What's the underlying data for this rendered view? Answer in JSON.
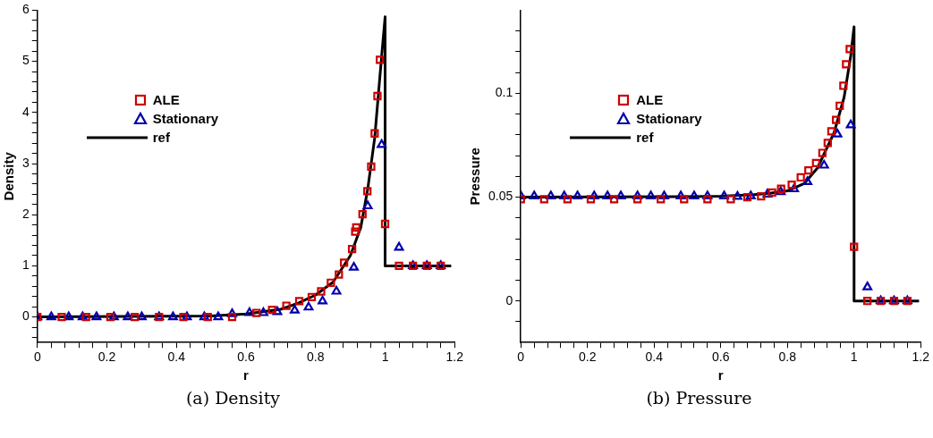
{
  "chart_data": [
    {
      "type": "scatter",
      "title": "(a) Density",
      "xlabel": "r",
      "ylabel": "Density",
      "legend": "top left",
      "xlim": [
        0,
        1.2
      ],
      "ylim": [
        -0.5,
        6
      ],
      "xticks": [
        0,
        {
          "value": 0.04,
          "label": null
        },
        {
          "value": 0.08,
          "label": null
        },
        {
          "value": 0.12,
          "label": null
        },
        {
          "value": 0.16,
          "label": null
        },
        0.2,
        {
          "value": 0.24,
          "label": null
        },
        {
          "value": 0.28,
          "label": null
        },
        {
          "value": 0.32,
          "label": null
        },
        {
          "value": 0.36,
          "label": null
        },
        0.4,
        {
          "value": 0.44,
          "label": null
        },
        {
          "value": 0.48,
          "label": null
        },
        {
          "value": 0.52,
          "label": null
        },
        {
          "value": 0.56,
          "label": null
        },
        0.6,
        {
          "value": 0.64,
          "label": null
        },
        {
          "value": 0.68,
          "label": null
        },
        {
          "value": 0.72,
          "label": null
        },
        {
          "value": 0.76,
          "label": null
        },
        0.8,
        {
          "value": 0.84,
          "label": null
        },
        {
          "value": 0.88,
          "label": null
        },
        {
          "value": 0.92,
          "label": null
        },
        {
          "value": 0.96,
          "label": null
        },
        1,
        {
          "value": 1.04,
          "label": null
        },
        {
          "value": 1.08,
          "label": null
        },
        {
          "value": 1.12,
          "label": null
        },
        {
          "value": 1.16,
          "label": null
        },
        1.2
      ],
      "yticks": [
        {
          "value": -0.4,
          "label": null
        },
        {
          "value": -0.2,
          "label": null
        },
        0,
        {
          "value": 0.2,
          "label": null
        },
        {
          "value": 0.4,
          "label": null
        },
        {
          "value": 0.6,
          "label": null
        },
        {
          "value": 0.8,
          "label": null
        },
        1,
        {
          "value": 1.2,
          "label": null
        },
        {
          "value": 1.4,
          "label": null
        },
        {
          "value": 1.6,
          "label": null
        },
        {
          "value": 1.8,
          "label": null
        },
        2,
        {
          "value": 2.2,
          "label": null
        },
        {
          "value": 2.4,
          "label": null
        },
        {
          "value": 2.6,
          "label": null
        },
        {
          "value": 2.8,
          "label": null
        },
        3,
        {
          "value": 3.2,
          "label": null
        },
        {
          "value": 3.4,
          "label": null
        },
        {
          "value": 3.6,
          "label": null
        },
        {
          "value": 3.8,
          "label": null
        },
        4,
        {
          "value": 4.2,
          "label": null
        },
        {
          "value": 4.4,
          "label": null
        },
        {
          "value": 4.6,
          "label": null
        },
        {
          "value": 4.8,
          "label": null
        },
        5,
        {
          "value": 5.2,
          "label": null
        },
        {
          "value": 5.4,
          "label": null
        },
        {
          "value": 5.6,
          "label": null
        },
        {
          "value": 5.8,
          "label": null
        },
        6
      ],
      "series": [
        {
          "name": "ALE",
          "type": "scatter",
          "marker": "square",
          "color": "#cc0000",
          "x": [
            0,
            0.07,
            0.14,
            0.21,
            0.28,
            0.35,
            0.42,
            0.49,
            0.56,
            0.63,
            0.675,
            0.716,
            0.753,
            0.789,
            0.816,
            0.844,
            0.867,
            0.882,
            0.905,
            0.914,
            0.917,
            0.935,
            0.949,
            0.96,
            0.97,
            0.978,
            0.985,
            1.0,
            1.04,
            1.08,
            1.12,
            1.16
          ],
          "values": [
            0,
            0,
            0,
            0,
            0,
            0,
            0,
            0,
            0,
            0.08,
            0.14,
            0.22,
            0.31,
            0.39,
            0.5,
            0.67,
            0.83,
            1.06,
            1.33,
            1.67,
            1.75,
            2.01,
            2.46,
            2.94,
            3.59,
            4.32,
            5.03,
            1.82,
            1,
            1,
            1,
            1
          ]
        },
        {
          "name": "Stationary",
          "type": "scatter",
          "marker": "triangle",
          "color": "#0000aa",
          "x": [
            0,
            0.04,
            0.09,
            0.13,
            0.17,
            0.22,
            0.26,
            0.3,
            0.35,
            0.39,
            0.43,
            0.48,
            0.52,
            0.56,
            0.61,
            0.65,
            0.69,
            0.74,
            0.78,
            0.82,
            0.86,
            0.91,
            0.95,
            0.99,
            1.04,
            1.08,
            1.12,
            1.16
          ],
          "values": [
            0,
            0,
            0,
            0,
            0,
            0,
            0,
            0,
            0,
            0,
            0,
            0,
            0,
            0.06,
            0.08,
            0.08,
            0.1,
            0.13,
            0.19,
            0.31,
            0.5,
            0.97,
            2.17,
            3.37,
            1.36,
            1,
            1,
            1
          ]
        },
        {
          "name": "ref",
          "type": "line",
          "marker": "none",
          "line_style": "solid",
          "color": "#000000",
          "x": [
            0,
            0.5,
            0.6,
            0.7,
            0.75,
            0.8,
            0.85,
            0.9,
            0.93,
            0.95,
            0.97,
            0.99,
            1,
            1,
            1.19
          ],
          "values": [
            0,
            0.02,
            0.06,
            0.15,
            0.27,
            0.43,
            0.68,
            1.2,
            1.75,
            2.5,
            3.5,
            5.1,
            5.87,
            1,
            1
          ]
        }
      ]
    },
    {
      "type": "scatter",
      "title": "(b) Pressure",
      "xlabel": "r",
      "ylabel": "Pressure",
      "legend": "top left",
      "xlim": [
        0,
        1.2
      ],
      "ylim": [
        -0.02,
        0.14
      ],
      "xticks": [
        0,
        {
          "value": 0.04,
          "label": null
        },
        {
          "value": 0.08,
          "label": null
        },
        {
          "value": 0.12,
          "label": null
        },
        {
          "value": 0.16,
          "label": null
        },
        0.2,
        {
          "value": 0.24,
          "label": null
        },
        {
          "value": 0.28,
          "label": null
        },
        {
          "value": 0.32,
          "label": null
        },
        {
          "value": 0.36,
          "label": null
        },
        0.4,
        {
          "value": 0.44,
          "label": null
        },
        {
          "value": 0.48,
          "label": null
        },
        {
          "value": 0.52,
          "label": null
        },
        {
          "value": 0.56,
          "label": null
        },
        0.6,
        {
          "value": 0.64,
          "label": null
        },
        {
          "value": 0.68,
          "label": null
        },
        {
          "value": 0.72,
          "label": null
        },
        {
          "value": 0.76,
          "label": null
        },
        0.8,
        {
          "value": 0.84,
          "label": null
        },
        {
          "value": 0.88,
          "label": null
        },
        {
          "value": 0.92,
          "label": null
        },
        {
          "value": 0.96,
          "label": null
        },
        1,
        {
          "value": 1.04,
          "label": null
        },
        {
          "value": 1.08,
          "label": null
        },
        {
          "value": 1.12,
          "label": null
        },
        {
          "value": 1.16,
          "label": null
        },
        1.2
      ],
      "yticks": [
        {
          "value": -0.01,
          "label": null
        },
        0,
        {
          "value": 0.01,
          "label": null
        },
        {
          "value": 0.02,
          "label": null
        },
        {
          "value": 0.03,
          "label": null
        },
        {
          "value": 0.04,
          "label": null
        },
        0.05,
        {
          "value": 0.06,
          "label": null
        },
        {
          "value": 0.07,
          "label": null
        },
        {
          "value": 0.08,
          "label": null
        },
        {
          "value": 0.09,
          "label": null
        },
        0.1,
        {
          "value": 0.11,
          "label": null
        },
        {
          "value": 0.12,
          "label": null
        },
        {
          "value": 0.13,
          "label": null
        }
      ],
      "series": [
        {
          "name": "ALE",
          "type": "scatter",
          "marker": "square",
          "color": "#cc0000",
          "x": [
            0,
            0.07,
            0.14,
            0.21,
            0.28,
            0.35,
            0.42,
            0.49,
            0.56,
            0.63,
            0.68,
            0.721,
            0.754,
            0.781,
            0.813,
            0.84,
            0.863,
            0.886,
            0.905,
            0.921,
            0.932,
            0.946,
            0.957,
            0.968,
            0.976,
            0.987,
            1.0,
            1.04,
            1.08,
            1.12,
            1.16
          ],
          "values": [
            0.049,
            0.049,
            0.049,
            0.049,
            0.049,
            0.049,
            0.049,
            0.049,
            0.049,
            0.049,
            0.05,
            0.0504,
            0.0522,
            0.054,
            0.056,
            0.0595,
            0.0629,
            0.0664,
            0.0713,
            0.0761,
            0.0817,
            0.0872,
            0.094,
            0.1036,
            0.114,
            0.1213,
            0.0261,
            0,
            0,
            0,
            0
          ]
        },
        {
          "name": "Stationary",
          "type": "scatter",
          "marker": "triangle",
          "color": "#0000aa",
          "x": [
            0,
            0.04,
            0.09,
            0.13,
            0.17,
            0.22,
            0.26,
            0.3,
            0.35,
            0.39,
            0.43,
            0.48,
            0.52,
            0.56,
            0.61,
            0.65,
            0.69,
            0.74,
            0.78,
            0.82,
            0.86,
            0.91,
            0.95,
            0.99,
            1.04,
            1.08,
            1.12,
            1.16
          ],
          "values": [
            0.0505,
            0.0505,
            0.0505,
            0.0505,
            0.0505,
            0.0505,
            0.0505,
            0.0505,
            0.0505,
            0.0505,
            0.0505,
            0.0505,
            0.0505,
            0.0505,
            0.0505,
            0.0503,
            0.0505,
            0.0514,
            0.0525,
            0.0539,
            0.0574,
            0.0653,
            0.0803,
            0.0847,
            0.0067,
            0,
            0,
            0
          ]
        },
        {
          "name": "ref",
          "type": "line",
          "marker": "none",
          "line_style": "solid",
          "color": "#000000",
          "x": [
            0,
            0.5,
            0.6,
            0.7,
            0.75,
            0.8,
            0.85,
            0.89,
            0.94,
            0.97,
            0.99,
            1,
            1,
            1.195
          ],
          "values": [
            0.05,
            0.0502,
            0.0505,
            0.0512,
            0.052,
            0.053,
            0.0565,
            0.064,
            0.081,
            0.098,
            0.118,
            0.132,
            0,
            0
          ]
        }
      ]
    }
  ]
}
